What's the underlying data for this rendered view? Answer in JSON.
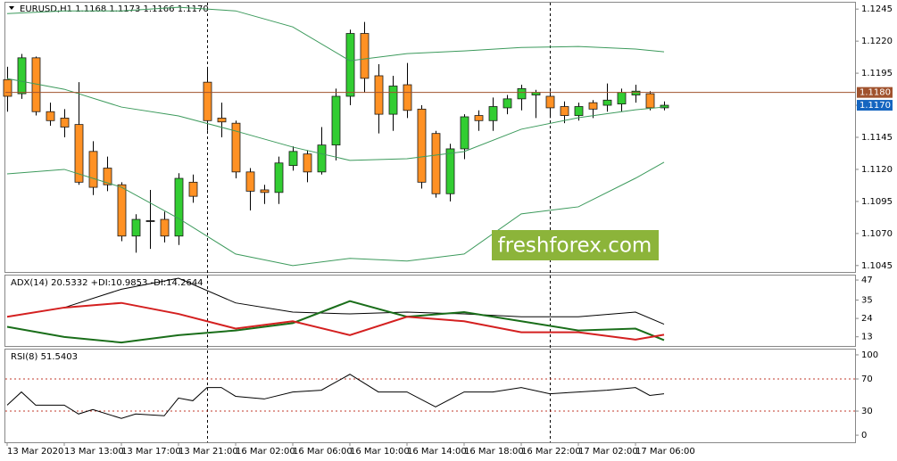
{
  "chart_data": [
    {
      "type": "candlestick",
      "title": "EURUSD,H1  1.1168 1.1173 1.1166 1.1170",
      "categories": [
        "13 Mar 2020",
        null,
        null,
        null,
        "13 Mar 13:00",
        null,
        null,
        null,
        "13 Mar 17:00",
        null,
        null,
        null,
        "13 Mar 21:00",
        null,
        null,
        null,
        "16 Mar 02:00",
        null,
        null,
        null,
        "16 Mar 06:00",
        null,
        null,
        null,
        "16 Mar 10:00",
        null,
        null,
        null,
        "16 Mar 14:00",
        null,
        null,
        null,
        "16 Mar 18:00",
        null,
        null,
        null,
        "16 Mar 22:00",
        null,
        null,
        null,
        "17 Mar 02:00",
        null,
        null,
        null,
        "17 Mar 06:00",
        null,
        null
      ],
      "open": [
        1.119,
        1.1179,
        1.1207,
        1.1165,
        1.116,
        1.1155,
        1.1134,
        1.1121,
        1.1108,
        1.1068,
        1.108,
        1.1081,
        1.1068,
        1.111,
        1.1188,
        1.116,
        1.1156,
        1.1118,
        1.1104,
        1.1102,
        1.1123,
        1.1132,
        1.1118,
        1.1139,
        1.1177,
        1.1226,
        1.1193,
        1.1163,
        1.1186,
        1.1167,
        1.1148,
        1.1101,
        1.1136,
        1.1162,
        1.1158,
        1.1168,
        1.1175,
        1.1178,
        1.1177,
        1.1169,
        1.1162,
        1.1172,
        1.117,
        1.1171,
        1.1178,
        1.1179,
        1.1168
      ],
      "high": [
        1.12,
        1.121,
        1.1208,
        1.1172,
        1.1167,
        1.1188,
        1.1142,
        1.113,
        1.111,
        1.1085,
        1.1104,
        1.1087,
        1.1117,
        1.1116,
        1.12,
        1.1172,
        1.1158,
        1.1121,
        1.1108,
        1.113,
        1.1138,
        1.1135,
        1.1153,
        1.1183,
        1.1229,
        1.1235,
        1.1202,
        1.1193,
        1.1203,
        1.117,
        1.115,
        1.114,
        1.1163,
        1.1166,
        1.1176,
        1.1178,
        1.1186,
        1.1182,
        1.1181,
        1.1173,
        1.1172,
        1.1174,
        1.1187,
        1.1183,
        1.1186,
        1.1181,
        1.1173
      ],
      "low": [
        1.1165,
        1.1175,
        1.1162,
        1.1154,
        1.1145,
        1.1108,
        1.11,
        1.1103,
        1.1064,
        1.1055,
        1.1058,
        1.1063,
        1.1061,
        1.1094,
        1.115,
        1.1145,
        1.1113,
        1.1088,
        1.1093,
        1.1093,
        1.1119,
        1.111,
        1.1116,
        1.1127,
        1.117,
        1.118,
        1.1148,
        1.115,
        1.116,
        1.1105,
        1.1098,
        1.1095,
        1.1128,
        1.115,
        1.115,
        1.1163,
        1.1166,
        1.116,
        1.116,
        1.1156,
        1.1158,
        1.116,
        1.1165,
        1.1165,
        1.1172,
        1.1166,
        1.1166
      ],
      "close": [
        1.1177,
        1.1207,
        1.1165,
        1.1158,
        1.1153,
        1.111,
        1.1106,
        1.1108,
        1.1068,
        1.1081,
        1.108,
        1.1068,
        1.1113,
        1.1099,
        1.1158,
        1.1157,
        1.1118,
        1.1103,
        1.1102,
        1.1125,
        1.1134,
        1.1118,
        1.1139,
        1.1177,
        1.1226,
        1.1191,
        1.1163,
        1.1185,
        1.1166,
        1.111,
        1.1101,
        1.1136,
        1.1161,
        1.1158,
        1.1169,
        1.1175,
        1.1183,
        1.118,
        1.1168,
        1.1162,
        1.1169,
        1.1167,
        1.1174,
        1.118,
        1.1181,
        1.1168,
        1.117
      ],
      "up_color": "#32cd32",
      "down_color": "#ff9124",
      "bands": [
        {
          "color": "#3c9a5c",
          "x": [
            0,
            4,
            8,
            12,
            16,
            20,
            24,
            28,
            32,
            36,
            40,
            44,
            46
          ],
          "values": [
            1.12415,
            1.12436,
            1.12436,
            1.12464,
            1.12436,
            1.12311,
            1.12047,
            1.12103,
            1.12124,
            1.12151,
            1.12158,
            1.12138,
            1.12117
          ]
        },
        {
          "color": "#3c9a5c",
          "x": [
            0,
            4,
            8,
            12,
            16,
            20,
            24,
            28,
            32,
            36,
            40,
            44,
            46
          ],
          "values": [
            1.11908,
            1.11825,
            1.11686,
            1.11617,
            1.11499,
            1.11374,
            1.1127,
            1.11283,
            1.11339,
            1.11513,
            1.11603,
            1.11665,
            1.11686
          ]
        },
        {
          "color": "#3c9a5c",
          "x": [
            0,
            4,
            8,
            12,
            16,
            20,
            24,
            28,
            32,
            36,
            40,
            44,
            46
          ],
          "values": [
            1.11165,
            1.112,
            1.11061,
            1.10818,
            1.1054,
            1.1045,
            1.10506,
            1.10485,
            1.1054,
            1.10853,
            1.10908,
            1.11131,
            1.11256
          ]
        }
      ],
      "price_line": {
        "value": 1.118,
        "label": "1.1180",
        "color": "#a0522d"
      },
      "bid_line": {
        "value": 1.117,
        "label": "1.1170",
        "color": "#1565c0"
      },
      "watermark": "freshforex.com",
      "ylim": [
        1.104,
        1.125
      ],
      "yticks": [
        1.1245,
        {
          "value": 1.122,
          "label": "1.1220"
        },
        1.1195,
        {
          "value": 1.117,
          "label": "1.1170"
        },
        1.1145,
        {
          "value": 1.112,
          "label": "1.1120"
        },
        1.1095,
        {
          "value": 1.107,
          "label": "1.1070"
        },
        1.1045
      ]
    },
    {
      "type": "line",
      "title": "ADX(14) 20.5332 +DI:10.9853 -DI:14.2644",
      "x": [
        0,
        4,
        8,
        12,
        16,
        20,
        24,
        28,
        32,
        36,
        40,
        44,
        46
      ],
      "series": [
        {
          "color": "#000000",
          "values": [
            25.0,
            30.5,
            41.5,
            48.1,
            33.3,
            27.8,
            26.7,
            27.8,
            26.7,
            25.0,
            25.0,
            27.8,
            20.5332
          ]
        },
        {
          "color": "#1a6e1a",
          "values": [
            19.0,
            12.9,
            9.6,
            14.0,
            16.8,
            21.2,
            34.4,
            25.0,
            27.8,
            22.3,
            16.8,
            17.9,
            10.9853
          ]
        },
        {
          "color": "#d42020",
          "values": [
            25.0,
            30.5,
            33.3,
            26.7,
            17.9,
            22.3,
            14.0,
            25.0,
            22.3,
            15.7,
            15.7,
            11.3,
            14.2644
          ]
        }
      ],
      "ylim": [
        7.5,
        49.7
      ],
      "yticks": [
        47,
        35,
        24,
        13
      ]
    },
    {
      "type": "line",
      "title": "RSI(8) 51.5403",
      "x": [
        0,
        1,
        2,
        4,
        5,
        6,
        8,
        9,
        11,
        12,
        13,
        14,
        15,
        16,
        18,
        20,
        22,
        24,
        26,
        28,
        30,
        32,
        34,
        36,
        38,
        40,
        42,
        44,
        45,
        46
      ],
      "series": [
        {
          "color": "#000000",
          "values": [
            37.4,
            53.8,
            37.4,
            37.4,
            26.4,
            31.9,
            20.9,
            26.4,
            24.2,
            46.2,
            42.9,
            59.3,
            59.3,
            48.4,
            45.1,
            53.8,
            56.0,
            75.8,
            53.8,
            53.8,
            35.2,
            53.8,
            53.8,
            59.3,
            51.6,
            53.8,
            56.0,
            59.3,
            49.5,
            51.5403
          ]
        }
      ],
      "levels": [
        70,
        30
      ],
      "level_color": "#c0392b",
      "ylim": [
        -8.8,
        106.6
      ],
      "yticks": [
        100,
        70,
        30,
        0
      ]
    }
  ]
}
